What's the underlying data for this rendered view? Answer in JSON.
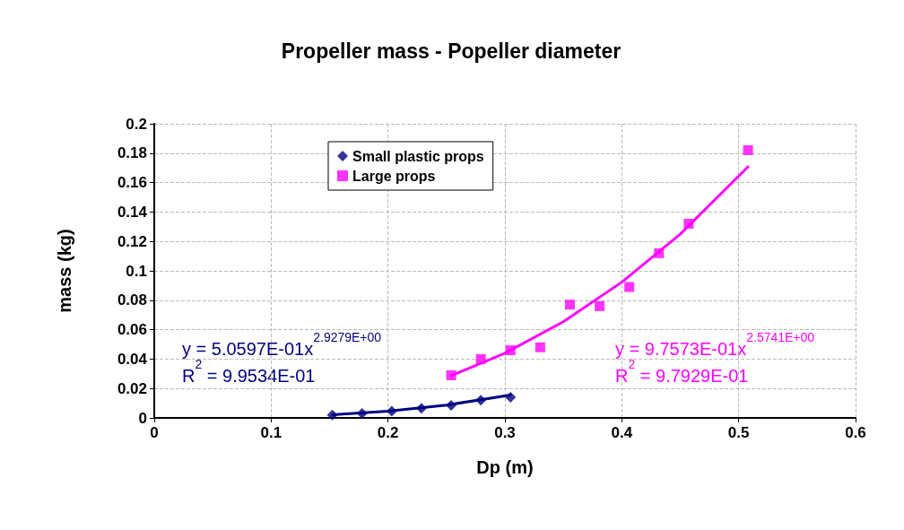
{
  "chart_data": {
    "type": "scatter",
    "title": "Propeller mass - Popeller diameter",
    "xlabel": "Dp (m)",
    "ylabel": "mass (kg)",
    "xlim": [
      0,
      0.6
    ],
    "xticks": [
      0,
      0.1,
      0.2,
      0.3,
      0.4,
      0.5,
      0.6
    ],
    "ylim": [
      0,
      0.2
    ],
    "yticks": [
      0,
      0.02,
      0.04,
      0.06,
      0.08,
      0.1,
      0.12,
      0.14,
      0.16,
      0.18,
      0.2
    ],
    "grid": true,
    "legend": "top left",
    "series": [
      {
        "name": "Small plastic props",
        "color": "#000080",
        "marker": "diamond",
        "x": [
          0.1524,
          0.1778,
          0.2032,
          0.2286,
          0.254,
          0.2794,
          0.3048
        ],
        "values": [
          0.002,
          0.003,
          0.0045,
          0.0065,
          0.0085,
          0.012,
          0.014
        ]
      },
      {
        "name": "Large props",
        "color": "#ff00ff",
        "marker": "square",
        "x": [
          0.254,
          0.2794,
          0.3048,
          0.3302,
          0.3556,
          0.381,
          0.4064,
          0.4318,
          0.4572,
          0.508
        ],
        "values": [
          0.029,
          0.04,
          0.046,
          0.048,
          0.077,
          0.076,
          0.089,
          0.112,
          0.132,
          0.182
        ]
      },
      {
        "type": "line",
        "color": "#000080",
        "marker": "none",
        "x": [
          0.1524,
          0.2,
          0.25,
          0.3048
        ],
        "values": [
          0.0021,
          0.0046,
          0.0087,
          0.0156
        ]
      },
      {
        "type": "line",
        "color": "#ff00ff",
        "marker": "none",
        "x": [
          0.254,
          0.3,
          0.35,
          0.4,
          0.45,
          0.508
        ],
        "values": [
          0.0287,
          0.044,
          0.0654,
          0.0923,
          0.1249,
          0.1707
        ]
      }
    ],
    "annotations": [
      "y = 5.0597E-01x$^{2.9279E+00}$\nR$^{2}$ = 9.9534E-01",
      "y = 9.7573E-01x$^{2.5741E+00}$\nR$^{2}$ = 9.7929E-01"
    ]
  }
}
